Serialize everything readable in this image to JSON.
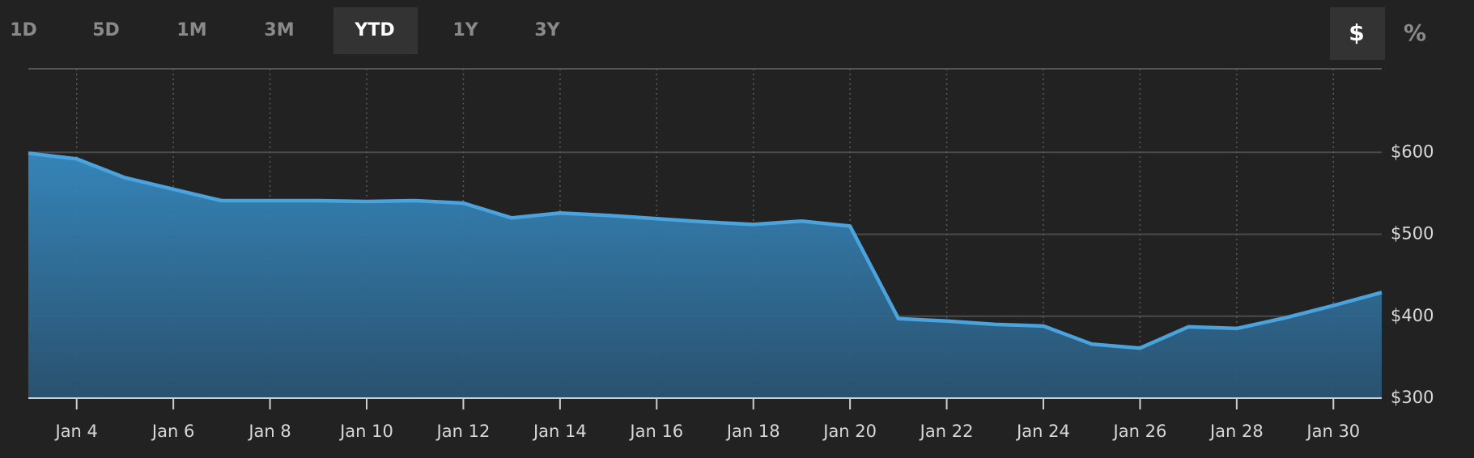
{
  "buttons": [
    "1D",
    "5D",
    "1M",
    "3M",
    "YTD",
    "1Y",
    "3Y"
  ],
  "active_button": "YTD",
  "mode_buttons": [
    "$",
    "%"
  ],
  "active_mode": "$",
  "chart_data": {
    "type": "area",
    "categories": [
      null,
      "Jan 4",
      null,
      "Jan 6",
      null,
      "Jan 8",
      null,
      "Jan 10",
      null,
      "Jan 12",
      null,
      "Jan 14",
      null,
      "Jan 16",
      null,
      "Jan 18",
      null,
      "Jan 20",
      null,
      "Jan 22",
      null,
      "Jan 24",
      null,
      "Jan 26",
      null,
      "Jan 28",
      null,
      "Jan 30",
      null
    ],
    "values": [
      599,
      592,
      569,
      555,
      541,
      541,
      541,
      540,
      541,
      538,
      520,
      526,
      523,
      519,
      515,
      512,
      516,
      510,
      397,
      394,
      390,
      388,
      366,
      361,
      387,
      385,
      398,
      413,
      429
    ],
    "color": "#4aa3dd",
    "ylim": [
      300,
      700
    ],
    "yticks": [
      {
        "value": 300,
        "label": "$300"
      },
      {
        "value": 400,
        "label": "$400"
      },
      {
        "value": 500,
        "label": "$500"
      },
      {
        "value": 600,
        "label": "$600"
      }
    ],
    "grid": true
  }
}
